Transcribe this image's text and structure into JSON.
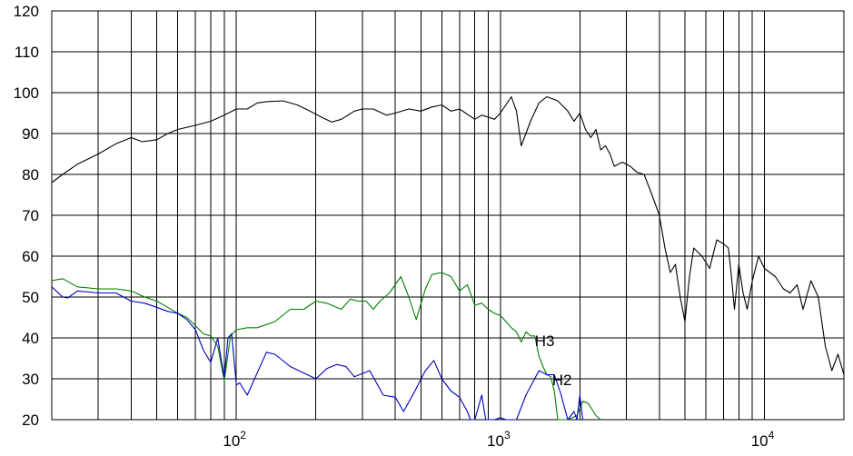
{
  "chart_data": {
    "type": "line",
    "title": "",
    "xlabel": "",
    "ylabel": "",
    "xscale": "log",
    "xlim": [
      20,
      20000
    ],
    "ylim": [
      20,
      120
    ],
    "grid": true,
    "legend": "none",
    "y_ticks": [
      "20",
      "30",
      "40",
      "50",
      "60",
      "70",
      "80",
      "90",
      "100",
      "110",
      "120"
    ],
    "x_ticks": [
      {
        "base": "10",
        "exp": "2",
        "value": 100
      },
      {
        "base": "10",
        "exp": "3",
        "value": 1000
      },
      {
        "base": "10",
        "exp": "4",
        "value": 10000
      }
    ],
    "annotations": [
      {
        "text": "H3",
        "x": 1350,
        "y": 38
      },
      {
        "text": "H2",
        "x": 1570,
        "y": 28.5
      }
    ],
    "series": [
      {
        "color": "#000000",
        "points": [
          [
            20,
            78
          ],
          [
            22,
            80
          ],
          [
            25,
            82.5
          ],
          [
            30,
            85
          ],
          [
            35,
            87.5
          ],
          [
            40,
            89
          ],
          [
            44,
            88
          ],
          [
            50,
            88.5
          ],
          [
            55,
            90
          ],
          [
            60,
            91
          ],
          [
            70,
            92
          ],
          [
            80,
            93
          ],
          [
            90,
            94.5
          ],
          [
            100,
            96
          ],
          [
            110,
            96
          ],
          [
            120,
            97.5
          ],
          [
            130,
            97.8
          ],
          [
            150,
            98
          ],
          [
            170,
            97
          ],
          [
            190,
            95.5
          ],
          [
            210,
            94
          ],
          [
            230,
            92.8
          ],
          [
            250,
            93.5
          ],
          [
            280,
            95.5
          ],
          [
            300,
            96
          ],
          [
            330,
            96
          ],
          [
            370,
            94.5
          ],
          [
            400,
            95
          ],
          [
            450,
            96
          ],
          [
            500,
            95.5
          ],
          [
            550,
            96.5
          ],
          [
            600,
            97
          ],
          [
            650,
            95.5
          ],
          [
            700,
            96
          ],
          [
            800,
            93.5
          ],
          [
            850,
            94.5
          ],
          [
            900,
            94
          ],
          [
            950,
            93.5
          ],
          [
            1000,
            95
          ],
          [
            1100,
            99
          ],
          [
            1150,
            95.5
          ],
          [
            1200,
            87
          ],
          [
            1300,
            93
          ],
          [
            1400,
            97.5
          ],
          [
            1500,
            99
          ],
          [
            1650,
            98
          ],
          [
            1800,
            95.5
          ],
          [
            1900,
            93
          ],
          [
            2000,
            95
          ],
          [
            2100,
            91
          ],
          [
            2200,
            89
          ],
          [
            2300,
            91
          ],
          [
            2400,
            86
          ],
          [
            2500,
            87
          ],
          [
            2600,
            85
          ],
          [
            2700,
            82
          ],
          [
            2900,
            83
          ],
          [
            3100,
            82
          ],
          [
            3300,
            80.5
          ],
          [
            3500,
            80
          ],
          [
            3700,
            76
          ],
          [
            3900,
            72
          ],
          [
            4000,
            70
          ],
          [
            4200,
            62
          ],
          [
            4400,
            56
          ],
          [
            4600,
            58
          ],
          [
            4800,
            50
          ],
          [
            5000,
            44
          ],
          [
            5200,
            55
          ],
          [
            5400,
            62
          ],
          [
            5800,
            60
          ],
          [
            6200,
            57
          ],
          [
            6600,
            64
          ],
          [
            7000,
            63
          ],
          [
            7300,
            62
          ],
          [
            7500,
            55
          ],
          [
            7700,
            47
          ],
          [
            8000,
            58
          ],
          [
            8300,
            51
          ],
          [
            8600,
            47
          ],
          [
            9000,
            54
          ],
          [
            9500,
            60
          ],
          [
            10000,
            57
          ],
          [
            11000,
            55
          ],
          [
            11800,
            52
          ],
          [
            12500,
            51
          ],
          [
            13300,
            53
          ],
          [
            14000,
            47
          ],
          [
            15000,
            54
          ],
          [
            16000,
            50
          ],
          [
            17000,
            38
          ],
          [
            18000,
            32
          ],
          [
            19000,
            36
          ],
          [
            20000,
            31
          ]
        ]
      },
      {
        "name": "H3",
        "color": "#008000",
        "points": [
          [
            20,
            54
          ],
          [
            22,
            54.5
          ],
          [
            25,
            52.5
          ],
          [
            30,
            52
          ],
          [
            35,
            52
          ],
          [
            40,
            51.5
          ],
          [
            45,
            50
          ],
          [
            50,
            49
          ],
          [
            55,
            47.5
          ],
          [
            60,
            46
          ],
          [
            65,
            45
          ],
          [
            70,
            43
          ],
          [
            75,
            41
          ],
          [
            80,
            40.5
          ],
          [
            85,
            38
          ],
          [
            90,
            29.5
          ],
          [
            95,
            40.5
          ],
          [
            100,
            42
          ],
          [
            110,
            42.5
          ],
          [
            120,
            42.5
          ],
          [
            140,
            44
          ],
          [
            160,
            47
          ],
          [
            180,
            47
          ],
          [
            200,
            49
          ],
          [
            220,
            48.5
          ],
          [
            250,
            47
          ],
          [
            270,
            49.5
          ],
          [
            290,
            49
          ],
          [
            310,
            49
          ],
          [
            330,
            47
          ],
          [
            350,
            49
          ],
          [
            380,
            51
          ],
          [
            420,
            55
          ],
          [
            450,
            50
          ],
          [
            480,
            44.5
          ],
          [
            520,
            52
          ],
          [
            550,
            55.5
          ],
          [
            600,
            56
          ],
          [
            650,
            55
          ],
          [
            700,
            51.5
          ],
          [
            750,
            53
          ],
          [
            800,
            48
          ],
          [
            850,
            48.5
          ],
          [
            900,
            47
          ],
          [
            950,
            46
          ],
          [
            1000,
            45.5
          ],
          [
            1050,
            44
          ],
          [
            1100,
            42.5
          ],
          [
            1150,
            41.5
          ],
          [
            1200,
            39
          ],
          [
            1250,
            41.5
          ],
          [
            1300,
            40.5
          ],
          [
            1350,
            40.5
          ],
          [
            1400,
            35.5
          ],
          [
            1450,
            33
          ],
          [
            1500,
            31
          ],
          [
            1550,
            30.5
          ],
          [
            1600,
            27
          ],
          [
            1650,
            20
          ],
          [
            1800,
            20
          ],
          [
            1950,
            21
          ],
          [
            2050,
            24.5
          ],
          [
            2150,
            24
          ],
          [
            2300,
            21
          ],
          [
            2400,
            20
          ]
        ]
      },
      {
        "name": "H2",
        "color": "#0000c0",
        "points": [
          [
            20,
            52.5
          ],
          [
            22,
            50
          ],
          [
            23,
            49.8
          ],
          [
            25,
            51.5
          ],
          [
            30,
            51
          ],
          [
            35,
            51
          ],
          [
            40,
            49
          ],
          [
            45,
            48.5
          ],
          [
            50,
            47.5
          ],
          [
            55,
            46.5
          ],
          [
            60,
            46
          ],
          [
            65,
            44.5
          ],
          [
            70,
            42
          ],
          [
            75,
            37
          ],
          [
            80,
            34
          ],
          [
            85,
            40
          ],
          [
            88,
            34
          ],
          [
            90,
            30.5
          ],
          [
            93,
            40
          ],
          [
            96,
            41
          ],
          [
            100,
            28.5
          ],
          [
            103,
            29
          ],
          [
            110,
            26
          ],
          [
            130,
            36.5
          ],
          [
            140,
            36
          ],
          [
            160,
            33
          ],
          [
            200,
            30
          ],
          [
            220,
            32.5
          ],
          [
            240,
            33.5
          ],
          [
            260,
            33
          ],
          [
            280,
            30.5
          ],
          [
            320,
            32
          ],
          [
            360,
            26
          ],
          [
            400,
            25.5
          ],
          [
            430,
            22
          ],
          [
            470,
            26.5
          ],
          [
            520,
            32
          ],
          [
            560,
            34.5
          ],
          [
            600,
            30
          ],
          [
            650,
            27
          ],
          [
            700,
            25.5
          ],
          [
            750,
            22
          ],
          [
            770,
            20
          ],
          [
            800,
            20
          ],
          [
            850,
            26
          ],
          [
            880,
            20
          ],
          [
            950,
            20
          ],
          [
            1000,
            20.5
          ],
          [
            1050,
            20
          ],
          [
            1150,
            20
          ],
          [
            1250,
            26
          ],
          [
            1400,
            32
          ],
          [
            1500,
            31
          ],
          [
            1600,
            31
          ],
          [
            1700,
            26
          ],
          [
            1800,
            20
          ],
          [
            1900,
            22
          ],
          [
            1950,
            20
          ],
          [
            2000,
            26
          ],
          [
            2050,
            20
          ]
        ]
      }
    ]
  }
}
